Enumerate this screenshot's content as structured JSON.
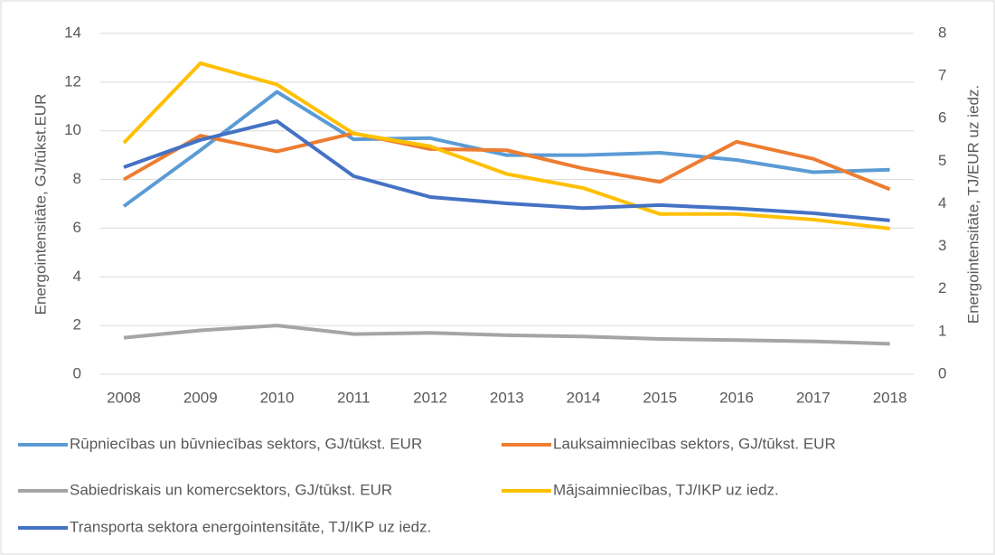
{
  "chart_data": {
    "type": "line",
    "categories": [
      "2008",
      "2009",
      "2010",
      "2011",
      "2012",
      "2013",
      "2014",
      "2015",
      "2016",
      "2017",
      "2018"
    ],
    "ylabel": "Energointensitāte, GJ/tūkst.EUR",
    "y2label": "Energointensitāte, TJ/EUR uz iedz.",
    "ylim": [
      0,
      14
    ],
    "yticks": [
      0,
      2,
      4,
      6,
      8,
      10,
      12,
      14
    ],
    "y2lim": [
      0,
      8
    ],
    "y2ticks": [
      0,
      1,
      2,
      3,
      4,
      5,
      6,
      7,
      8
    ],
    "grid": true,
    "legend": "bottom",
    "series": [
      {
        "name": "Rūpniecības un būvniecības sektors, GJ/tūkst. EUR",
        "color": "#5b9bd5",
        "values": [
          6.9,
          9.2,
          11.6,
          9.65,
          9.7,
          9.0,
          9.0,
          9.1,
          8.8,
          8.3,
          8.4
        ]
      },
      {
        "name": "Lauksaimniecības sektors, GJ/tūkst. EUR",
        "color": "#ed7d31",
        "values": [
          8.0,
          9.8,
          9.15,
          9.9,
          9.25,
          9.2,
          8.45,
          7.9,
          9.55,
          8.85,
          7.6
        ]
      },
      {
        "name": "Sabiedriskais un komercsektors, GJ/tūkst. EUR",
        "color": "#a5a5a5",
        "values": [
          1.5,
          1.8,
          2.0,
          1.65,
          1.7,
          1.6,
          1.55,
          1.45,
          1.4,
          1.35,
          1.25
        ]
      },
      {
        "name": "Mājsaimniecības, TJ/IKP uz iedz.",
        "color": "#ffc000",
        "axis": "y2",
        "values": [
          5.43,
          7.3,
          6.8,
          5.65,
          5.35,
          4.7,
          4.37,
          3.76,
          3.76,
          3.63,
          3.42
        ]
      },
      {
        "name": "Transporta sektora energointensitāte, TJ/IKP uz iedz.",
        "color": "#4472c4",
        "axis": "y2",
        "values": [
          4.86,
          5.5,
          5.94,
          4.65,
          4.16,
          4.01,
          3.9,
          3.97,
          3.89,
          3.78,
          3.61
        ]
      }
    ]
  }
}
